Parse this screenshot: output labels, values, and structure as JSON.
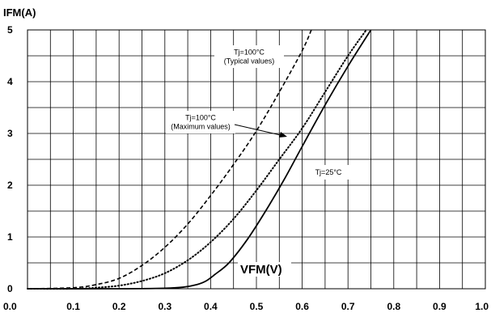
{
  "chart_data": {
    "type": "line",
    "xlabel": "VFM(V)",
    "ylabel": "IFM(A)",
    "xlim": [
      0,
      1.0
    ],
    "ylim": [
      0,
      5
    ],
    "x_ticks": [
      "0.0",
      "0.1",
      "0.2",
      "0.3",
      "0.4",
      "0.5",
      "0.6",
      "0.7",
      "0.8",
      "0.9",
      "1.0"
    ],
    "y_ticks": [
      "0",
      "1",
      "2",
      "3",
      "4",
      "5"
    ],
    "grid": true,
    "series": [
      {
        "name": "Tj=25°C",
        "style": "solid",
        "x": [
          0.0,
          0.2,
          0.3,
          0.34,
          0.37,
          0.39,
          0.41,
          0.44,
          0.48,
          0.52,
          0.56,
          0.6,
          0.65,
          0.7,
          0.75
        ],
        "y": [
          0.0,
          0.0,
          0.01,
          0.03,
          0.08,
          0.15,
          0.28,
          0.5,
          0.95,
          1.5,
          2.1,
          2.75,
          3.55,
          4.3,
          5.0
        ]
      },
      {
        "name": "Tj=100°C (Maximum values)",
        "style": "dotted",
        "x": [
          0.0,
          0.1,
          0.15,
          0.2,
          0.25,
          0.3,
          0.35,
          0.4,
          0.45,
          0.5,
          0.55,
          0.6,
          0.65,
          0.7,
          0.74
        ],
        "y": [
          0.0,
          0.0,
          0.02,
          0.06,
          0.15,
          0.3,
          0.55,
          0.9,
          1.35,
          1.9,
          2.5,
          3.1,
          3.8,
          4.5,
          5.0
        ]
      },
      {
        "name": "Tj=100°C (Typical values)",
        "style": "dashed",
        "x": [
          0.0,
          0.1,
          0.15,
          0.2,
          0.25,
          0.3,
          0.35,
          0.4,
          0.45,
          0.5,
          0.55,
          0.6,
          0.62
        ],
        "y": [
          0.0,
          0.02,
          0.08,
          0.2,
          0.45,
          0.8,
          1.25,
          1.8,
          2.4,
          3.05,
          3.8,
          4.6,
          5.0
        ]
      }
    ],
    "annotations": [
      {
        "id": "typ",
        "lines": [
          "Tj=100°C",
          "(Typical values)"
        ]
      },
      {
        "id": "max",
        "lines": [
          "Tj=100°C",
          "(Maximum values)"
        ]
      },
      {
        "id": "t25",
        "lines": [
          "Tj=25°C"
        ]
      }
    ]
  }
}
